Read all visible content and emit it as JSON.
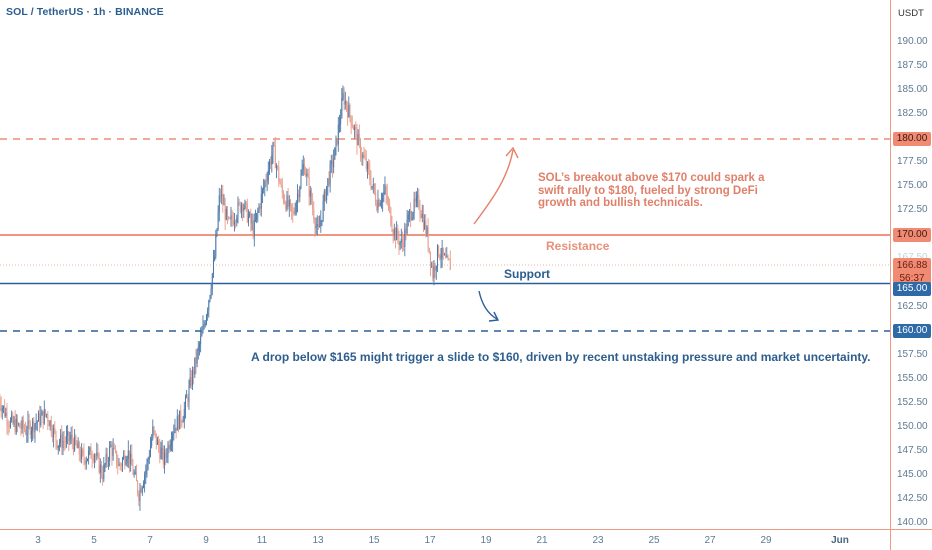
{
  "header": {
    "title": "SOL / TetherUS · 1h · BINANCE",
    "unit": "USDT"
  },
  "colors": {
    "bull": "#4a78a8",
    "bear": "#e89c8a",
    "resistance": "#e8735a",
    "support": "#2d5f99",
    "axis_line": "#ef9a82",
    "tick_text": "#5e7a94"
  },
  "price_tags": {
    "target_high": "180.00",
    "resistance": "170.00",
    "current_price": "166.88",
    "countdown": "56:37",
    "support": "165.00",
    "target_low": "160.00"
  },
  "annotations": {
    "bullish": "SOL’s breakout above $170 could spark a swift rally to $180, fueled by strong DeFi growth and bullish technicals.",
    "resistance_label": "Resistance",
    "support_label": "Support",
    "bearish": "A drop below $165 might trigger a slide to $160, driven by recent unstaking pressure and market uncertainty."
  },
  "chart_data": {
    "type": "candlestick",
    "title": "SOL / TetherUS · 1h · BINANCE",
    "ylabel": "USDT",
    "xlabel": "",
    "ylim": [
      140,
      190
    ],
    "y_ticks": [
      "190.00",
      "187.50",
      "185.00",
      "182.50",
      "180.00",
      "177.50",
      "175.00",
      "172.50",
      "170.00",
      "167.50",
      "165.00",
      "162.50",
      "160.00",
      "157.50",
      "155.00",
      "152.50",
      "150.00",
      "147.50",
      "145.00",
      "142.50",
      "140.00"
    ],
    "x_ticks": [
      "3",
      "5",
      "7",
      "9",
      "11",
      "13",
      "15",
      "17",
      "19",
      "21",
      "23",
      "25",
      "27",
      "29",
      "Jun"
    ],
    "grid": false,
    "levels": [
      {
        "name": "Target high",
        "price": 180.0,
        "style": "dashed",
        "color": "#e8735a"
      },
      {
        "name": "Resistance",
        "price": 170.0,
        "style": "solid",
        "color": "#e8735a"
      },
      {
        "name": "Current price",
        "price": 166.88,
        "style": "dotted",
        "color": "#f0a090"
      },
      {
        "name": "Support",
        "price": 165.0,
        "style": "solid",
        "color": "#2d5f99"
      },
      {
        "name": "Target low",
        "price": 160.0,
        "style": "dashed",
        "color": "#2d5f99"
      }
    ],
    "price_path": [
      {
        "day": 1.6,
        "price": 153.0
      },
      {
        "day": 2.0,
        "price": 150.5
      },
      {
        "day": 2.6,
        "price": 149.8
      },
      {
        "day": 3.3,
        "price": 151.5
      },
      {
        "day": 3.7,
        "price": 148.5
      },
      {
        "day": 4.2,
        "price": 148.8
      },
      {
        "day": 4.6,
        "price": 146.8
      },
      {
        "day": 5.0,
        "price": 147.5
      },
      {
        "day": 5.3,
        "price": 145.2
      },
      {
        "day": 5.6,
        "price": 148.0
      },
      {
        "day": 5.9,
        "price": 146.0
      },
      {
        "day": 6.2,
        "price": 147.6
      },
      {
        "day": 6.6,
        "price": 143.2
      },
      {
        "day": 6.9,
        "price": 146.2
      },
      {
        "day": 7.1,
        "price": 149.6
      },
      {
        "day": 7.5,
        "price": 146.5
      },
      {
        "day": 7.8,
        "price": 149.8
      },
      {
        "day": 8.2,
        "price": 151.5
      },
      {
        "day": 8.6,
        "price": 156.5
      },
      {
        "day": 8.9,
        "price": 160.2
      },
      {
        "day": 9.1,
        "price": 163.5
      },
      {
        "day": 9.3,
        "price": 167.5
      },
      {
        "day": 9.5,
        "price": 174.5
      },
      {
        "day": 9.8,
        "price": 171.0
      },
      {
        "day": 10.3,
        "price": 173.5
      },
      {
        "day": 10.7,
        "price": 170.5
      },
      {
        "day": 11.1,
        "price": 175.5
      },
      {
        "day": 11.4,
        "price": 179.0
      },
      {
        "day": 11.7,
        "price": 174.5
      },
      {
        "day": 12.1,
        "price": 172.0
      },
      {
        "day": 12.5,
        "price": 177.5
      },
      {
        "day": 12.8,
        "price": 173.0
      },
      {
        "day": 13.0,
        "price": 170.0
      },
      {
        "day": 13.3,
        "price": 175.0
      },
      {
        "day": 13.6,
        "price": 178.5
      },
      {
        "day": 13.9,
        "price": 184.5
      },
      {
        "day": 14.2,
        "price": 182.0
      },
      {
        "day": 14.5,
        "price": 179.0
      },
      {
        "day": 14.8,
        "price": 176.5
      },
      {
        "day": 15.1,
        "price": 173.5
      },
      {
        "day": 15.4,
        "price": 174.5
      },
      {
        "day": 15.7,
        "price": 170.5
      },
      {
        "day": 16.0,
        "price": 169.0
      },
      {
        "day": 16.3,
        "price": 172.5
      },
      {
        "day": 16.6,
        "price": 173.5
      },
      {
        "day": 16.9,
        "price": 170.0
      },
      {
        "day": 17.1,
        "price": 166.0
      },
      {
        "day": 17.3,
        "price": 168.5
      },
      {
        "day": 17.6,
        "price": 167.0
      },
      {
        "day": 17.75,
        "price": 166.88
      }
    ],
    "last_price": 166.88,
    "candle_interval": "1h"
  }
}
